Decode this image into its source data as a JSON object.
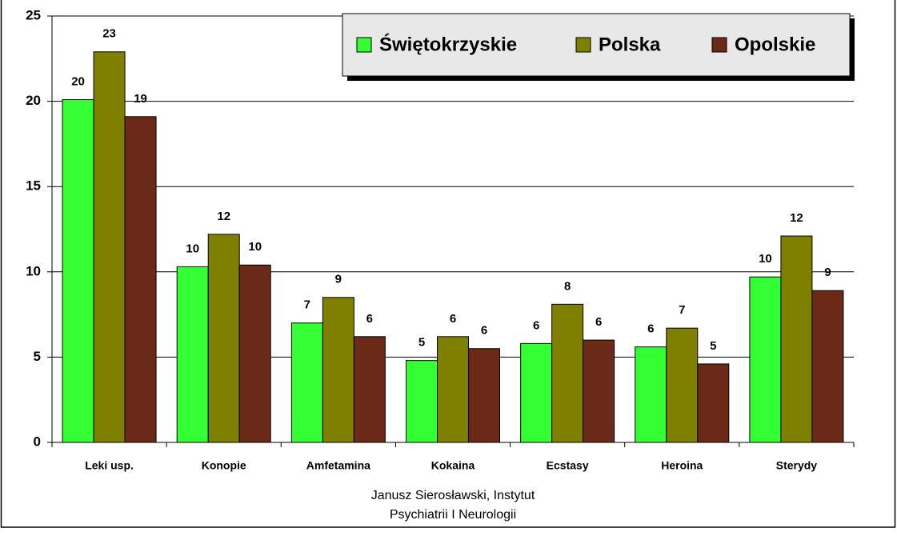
{
  "chart_data": {
    "type": "bar",
    "categories": [
      "Leki usp.",
      "Konopie",
      "Amfetamina",
      "Kokaina",
      "Ecstasy",
      "Heroina",
      "Sterydy"
    ],
    "series": [
      {
        "name": "Świętokrzyskie",
        "color": "#33ff33",
        "values": [
          20.1,
          10.3,
          7.0,
          4.8,
          5.8,
          5.6,
          9.7
        ],
        "value_labels": [
          "20",
          "10",
          "7",
          "5",
          "6",
          "6",
          "10"
        ]
      },
      {
        "name": "Polska",
        "color": "#808000",
        "values": [
          22.9,
          12.2,
          8.5,
          6.2,
          8.1,
          6.7,
          12.1
        ],
        "value_labels": [
          "23",
          "12",
          "9",
          "6",
          "8",
          "7",
          "12"
        ]
      },
      {
        "name": "Opolskie",
        "color": "#6b2a17",
        "values": [
          19.1,
          10.4,
          6.2,
          5.5,
          6.0,
          4.6,
          8.9
        ],
        "value_labels": [
          "19",
          "10",
          "6",
          "6",
          "6",
          "5",
          "9"
        ]
      }
    ],
    "ylim": [
      0,
      25
    ],
    "yticks": [
      0,
      5,
      10,
      15,
      20,
      25
    ],
    "grid": true,
    "legend": "top-right",
    "source": [
      "Janusz Sierosławski, Instytut",
      "Psychiatrii I Neurologii"
    ]
  }
}
